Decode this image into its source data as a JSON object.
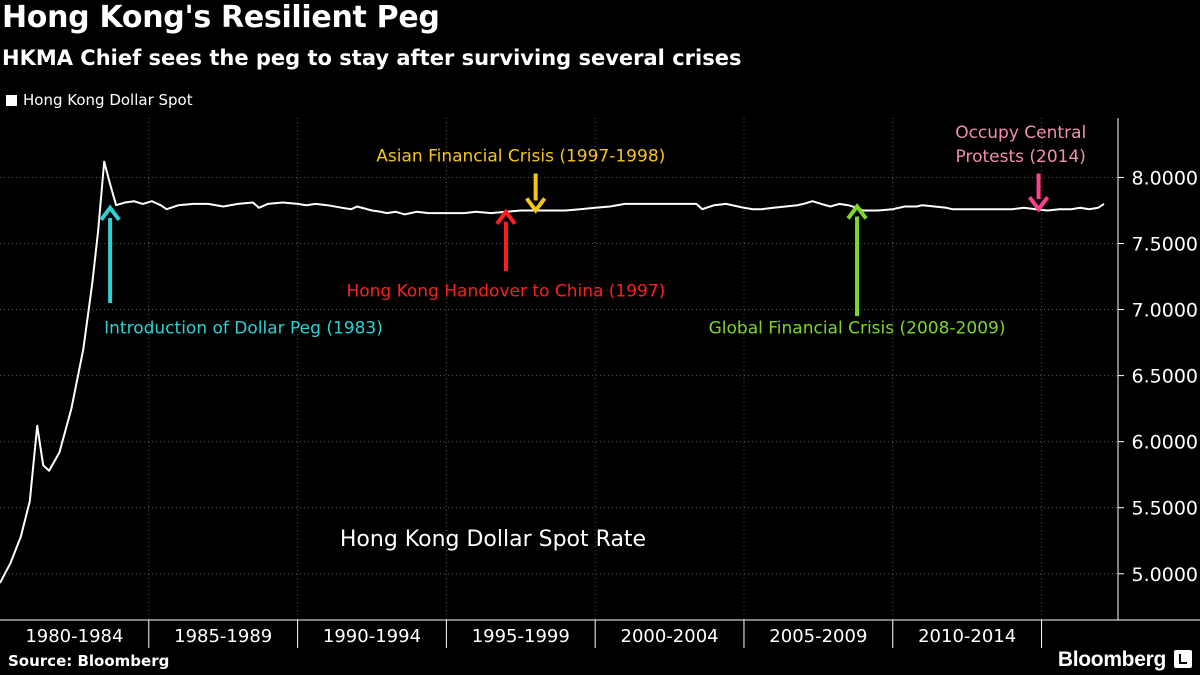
{
  "header": {
    "title": "Hong Kong's Resilient Peg",
    "subtitle": "HKMA Chief sees the peg to stay after surviving several crises"
  },
  "legend": {
    "label": "Hong Kong Dollar Spot"
  },
  "footer": {
    "source": "Source: Bloomberg",
    "brand": "Bloomberg"
  },
  "chart_data": {
    "type": "line",
    "series_name": "Hong Kong Dollar Spot",
    "inner_label": "Hong Kong Dollar Spot Rate",
    "x_unit": "year",
    "xlim": [
      1980.0,
      2017.3
    ],
    "ylim": [
      4.65,
      8.45
    ],
    "y_ticks": [
      5.0,
      5.5,
      6.0,
      6.5,
      7.0,
      7.5,
      8.0
    ],
    "y_tick_labels": [
      "5.0000",
      "5.5000",
      "6.0000",
      "6.5000",
      "7.0000",
      "7.5000",
      "8.0000"
    ],
    "x_categories": [
      {
        "label": "1980-1984",
        "start": 1980.0,
        "end": 1985.0
      },
      {
        "label": "1985-1989",
        "start": 1985.0,
        "end": 1990.0
      },
      {
        "label": "1990-1994",
        "start": 1990.0,
        "end": 1995.0
      },
      {
        "label": "1995-1999",
        "start": 1995.0,
        "end": 2000.0
      },
      {
        "label": "2000-2004",
        "start": 2000.0,
        "end": 2005.0
      },
      {
        "label": "2005-2009",
        "start": 2005.0,
        "end": 2010.0
      },
      {
        "label": "2010-2014",
        "start": 2010.0,
        "end": 2015.0
      }
    ],
    "x_separators": [
      1985.0,
      1990.0,
      1995.0,
      2000.0,
      2005.0,
      2010.0,
      2015.0
    ],
    "grid": true,
    "colors": {
      "line": "#ffffff",
      "grid": "#5a5a5a",
      "axis": "#ffffff"
    },
    "points": [
      [
        1980.0,
        4.93
      ],
      [
        1980.35,
        5.08
      ],
      [
        1980.7,
        5.28
      ],
      [
        1981.0,
        5.55
      ],
      [
        1981.25,
        6.12
      ],
      [
        1981.45,
        5.82
      ],
      [
        1981.65,
        5.78
      ],
      [
        1982.0,
        5.92
      ],
      [
        1982.4,
        6.25
      ],
      [
        1982.8,
        6.7
      ],
      [
        1983.1,
        7.2
      ],
      [
        1983.3,
        7.6
      ],
      [
        1983.5,
        8.12
      ],
      [
        1983.7,
        7.95
      ],
      [
        1983.9,
        7.79
      ],
      [
        1984.2,
        7.81
      ],
      [
        1984.5,
        7.82
      ],
      [
        1984.8,
        7.8
      ],
      [
        1985.1,
        7.82
      ],
      [
        1985.4,
        7.79
      ],
      [
        1985.6,
        7.76
      ],
      [
        1986.0,
        7.79
      ],
      [
        1986.5,
        7.8
      ],
      [
        1987.0,
        7.8
      ],
      [
        1987.5,
        7.78
      ],
      [
        1988.0,
        7.8
      ],
      [
        1988.5,
        7.81
      ],
      [
        1988.7,
        7.77
      ],
      [
        1989.0,
        7.8
      ],
      [
        1989.5,
        7.81
      ],
      [
        1990.0,
        7.8
      ],
      [
        1990.3,
        7.79
      ],
      [
        1990.6,
        7.8
      ],
      [
        1991.0,
        7.79
      ],
      [
        1991.5,
        7.77
      ],
      [
        1991.8,
        7.76
      ],
      [
        1992.0,
        7.78
      ],
      [
        1992.5,
        7.75
      ],
      [
        1992.8,
        7.74
      ],
      [
        1993.0,
        7.73
      ],
      [
        1993.3,
        7.74
      ],
      [
        1993.6,
        7.72
      ],
      [
        1994.0,
        7.74
      ],
      [
        1994.4,
        7.73
      ],
      [
        1994.8,
        7.73
      ],
      [
        1995.2,
        7.73
      ],
      [
        1995.6,
        7.73
      ],
      [
        1996.0,
        7.74
      ],
      [
        1996.5,
        7.73
      ],
      [
        1997.0,
        7.74
      ],
      [
        1997.5,
        7.75
      ],
      [
        1998.0,
        7.75
      ],
      [
        1998.5,
        7.75
      ],
      [
        1999.0,
        7.75
      ],
      [
        1999.5,
        7.76
      ],
      [
        2000.0,
        7.77
      ],
      [
        2000.5,
        7.78
      ],
      [
        2001.0,
        7.8
      ],
      [
        2002.0,
        7.8
      ],
      [
        2003.0,
        7.8
      ],
      [
        2003.4,
        7.8
      ],
      [
        2003.6,
        7.76
      ],
      [
        2004.0,
        7.79
      ],
      [
        2004.4,
        7.8
      ],
      [
        2004.8,
        7.78
      ],
      [
        2005.0,
        7.77
      ],
      [
        2005.3,
        7.76
      ],
      [
        2005.6,
        7.76
      ],
      [
        2006.0,
        7.77
      ],
      [
        2006.4,
        7.78
      ],
      [
        2006.8,
        7.79
      ],
      [
        2007.0,
        7.8
      ],
      [
        2007.3,
        7.82
      ],
      [
        2007.6,
        7.8
      ],
      [
        2007.9,
        7.78
      ],
      [
        2008.2,
        7.8
      ],
      [
        2008.5,
        7.79
      ],
      [
        2008.8,
        7.77
      ],
      [
        2009.0,
        7.75
      ],
      [
        2009.5,
        7.75
      ],
      [
        2010.0,
        7.76
      ],
      [
        2010.4,
        7.78
      ],
      [
        2010.8,
        7.78
      ],
      [
        2011.0,
        7.79
      ],
      [
        2011.4,
        7.78
      ],
      [
        2011.8,
        7.77
      ],
      [
        2012.0,
        7.76
      ],
      [
        2012.5,
        7.76
      ],
      [
        2013.0,
        7.76
      ],
      [
        2013.5,
        7.76
      ],
      [
        2014.0,
        7.76
      ],
      [
        2014.4,
        7.77
      ],
      [
        2014.8,
        7.76
      ],
      [
        2015.2,
        7.75
      ],
      [
        2015.6,
        7.76
      ],
      [
        2016.0,
        7.76
      ],
      [
        2016.3,
        7.77
      ],
      [
        2016.6,
        7.76
      ],
      [
        2016.9,
        7.77
      ],
      [
        2017.1,
        7.8
      ]
    ],
    "annotations": [
      {
        "label_lines": [
          "Introduction of Dollar Peg (1983)"
        ],
        "color": "#2bd2d6",
        "x": 1983.7,
        "direction": "up",
        "arrow_from": 7.05,
        "arrow_to": 7.77,
        "label_anchor": "start",
        "label_x": 1983.5,
        "label_y": 6.82
      },
      {
        "label_lines": [
          "Hong Kong Handover to China (1997)"
        ],
        "color": "#ff1f1f",
        "x": 1997.0,
        "direction": "up",
        "arrow_from": 7.29,
        "arrow_to": 7.74,
        "label_anchor": "middle",
        "label_x": 1997.0,
        "label_y": 7.1
      },
      {
        "label_lines": [
          "Asian Financial Crisis (1997-1998)"
        ],
        "color": "#f5c518",
        "x": 1998.0,
        "direction": "down",
        "arrow_from": 8.03,
        "arrow_to": 7.75,
        "label_anchor": "middle",
        "label_x": 1997.5,
        "label_y": 8.12
      },
      {
        "label_lines": [
          "Global Financial Crisis (2008-2009)"
        ],
        "color": "#7cd72b",
        "x": 2008.8,
        "direction": "up",
        "arrow_from": 6.95,
        "arrow_to": 7.78,
        "label_anchor": "middle",
        "label_x": 2008.8,
        "label_y": 6.82
      },
      {
        "label_lines": [
          "Occupy Central",
          "Protests (2014)"
        ],
        "color": "#ff3f8c",
        "label_color": "#f08fb4",
        "x": 2014.9,
        "direction": "down",
        "arrow_from": 8.03,
        "arrow_to": 7.76,
        "label_anchor": "middle",
        "label_x": 2014.3,
        "label_y": 8.3
      }
    ]
  }
}
